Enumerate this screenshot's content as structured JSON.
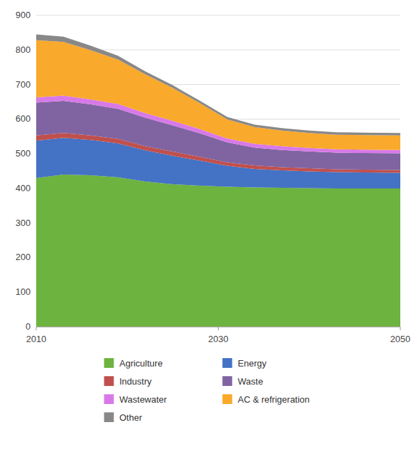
{
  "chart_data": {
    "type": "area",
    "stacked": true,
    "grid": true,
    "legend": "bottom",
    "x": [
      2010,
      2013,
      2016,
      2019,
      2022,
      2025,
      2028,
      2031,
      2034,
      2037,
      2040,
      2043,
      2046,
      2050
    ],
    "xlim": [
      2010,
      2050
    ],
    "xticks": [
      2010,
      2030,
      2050
    ],
    "ylim": [
      0,
      900
    ],
    "yticks": [
      0,
      100,
      200,
      300,
      400,
      500,
      600,
      700,
      800,
      900
    ],
    "series": [
      {
        "name": "Agriculture",
        "color": "#6db33f",
        "values": [
          430,
          440,
          438,
          432,
          420,
          412,
          408,
          405,
          403,
          402,
          401,
          400,
          400,
          400
        ]
      },
      {
        "name": "Energy",
        "color": "#4472c4",
        "values": [
          108,
          106,
          102,
          98,
          90,
          82,
          72,
          60,
          53,
          50,
          48,
          47,
          46,
          45
        ]
      },
      {
        "name": "Industry",
        "color": "#c0504d",
        "values": [
          15,
          14,
          13,
          13,
          12,
          12,
          11,
          10,
          10,
          9,
          9,
          8,
          8,
          8
        ]
      },
      {
        "name": "Waste",
        "color": "#8064a2",
        "values": [
          95,
          93,
          90,
          87,
          82,
          76,
          68,
          58,
          52,
          50,
          49,
          48,
          48,
          48
        ]
      },
      {
        "name": "Wastewater",
        "color": "#d879e8",
        "values": [
          15,
          15,
          14,
          14,
          13,
          13,
          12,
          11,
          11,
          11,
          10,
          10,
          10,
          10
        ]
      },
      {
        "name": "AC & refrigeration",
        "color": "#f9a92b",
        "values": [
          165,
          155,
          142,
          128,
          112,
          95,
          75,
          55,
          48,
          45,
          43,
          42,
          42,
          42
        ]
      },
      {
        "name": "Other",
        "color": "#888888",
        "values": [
          17,
          15,
          13,
          11,
          9,
          8,
          7,
          7,
          7,
          7,
          7,
          7,
          7,
          7
        ]
      }
    ]
  }
}
